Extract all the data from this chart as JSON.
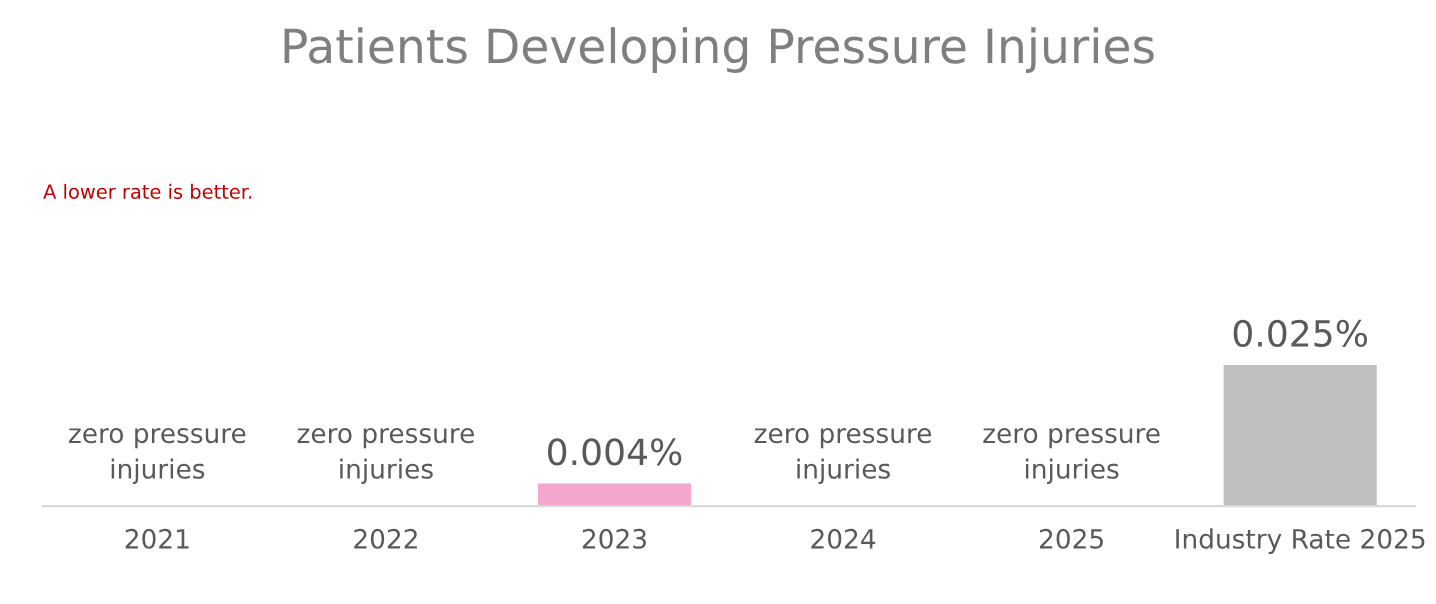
{
  "chart_data": {
    "type": "bar",
    "title": "Patients Developing Pressure Injuries",
    "categories": [
      "2021",
      "2022",
      "2023",
      "2024",
      "2025",
      "Industry Rate 2025"
    ],
    "values": [
      0,
      0,
      0.004,
      0,
      0,
      0.025
    ],
    "colors": [
      "#f4a6cf",
      "#f4a6cf",
      "#f4a6cf",
      "#f4a6cf",
      "#f4a6cf",
      "#bfbfbf"
    ],
    "value_labels": [
      "zero pressure\ninjuries",
      "zero pressure\ninjuries",
      "0.004%",
      "zero pressure\ninjuries",
      "zero pressure\ninjuries",
      "0.025%"
    ],
    "annotations": [
      "A lower rate is better."
    ],
    "grid": false,
    "legend": false
  }
}
